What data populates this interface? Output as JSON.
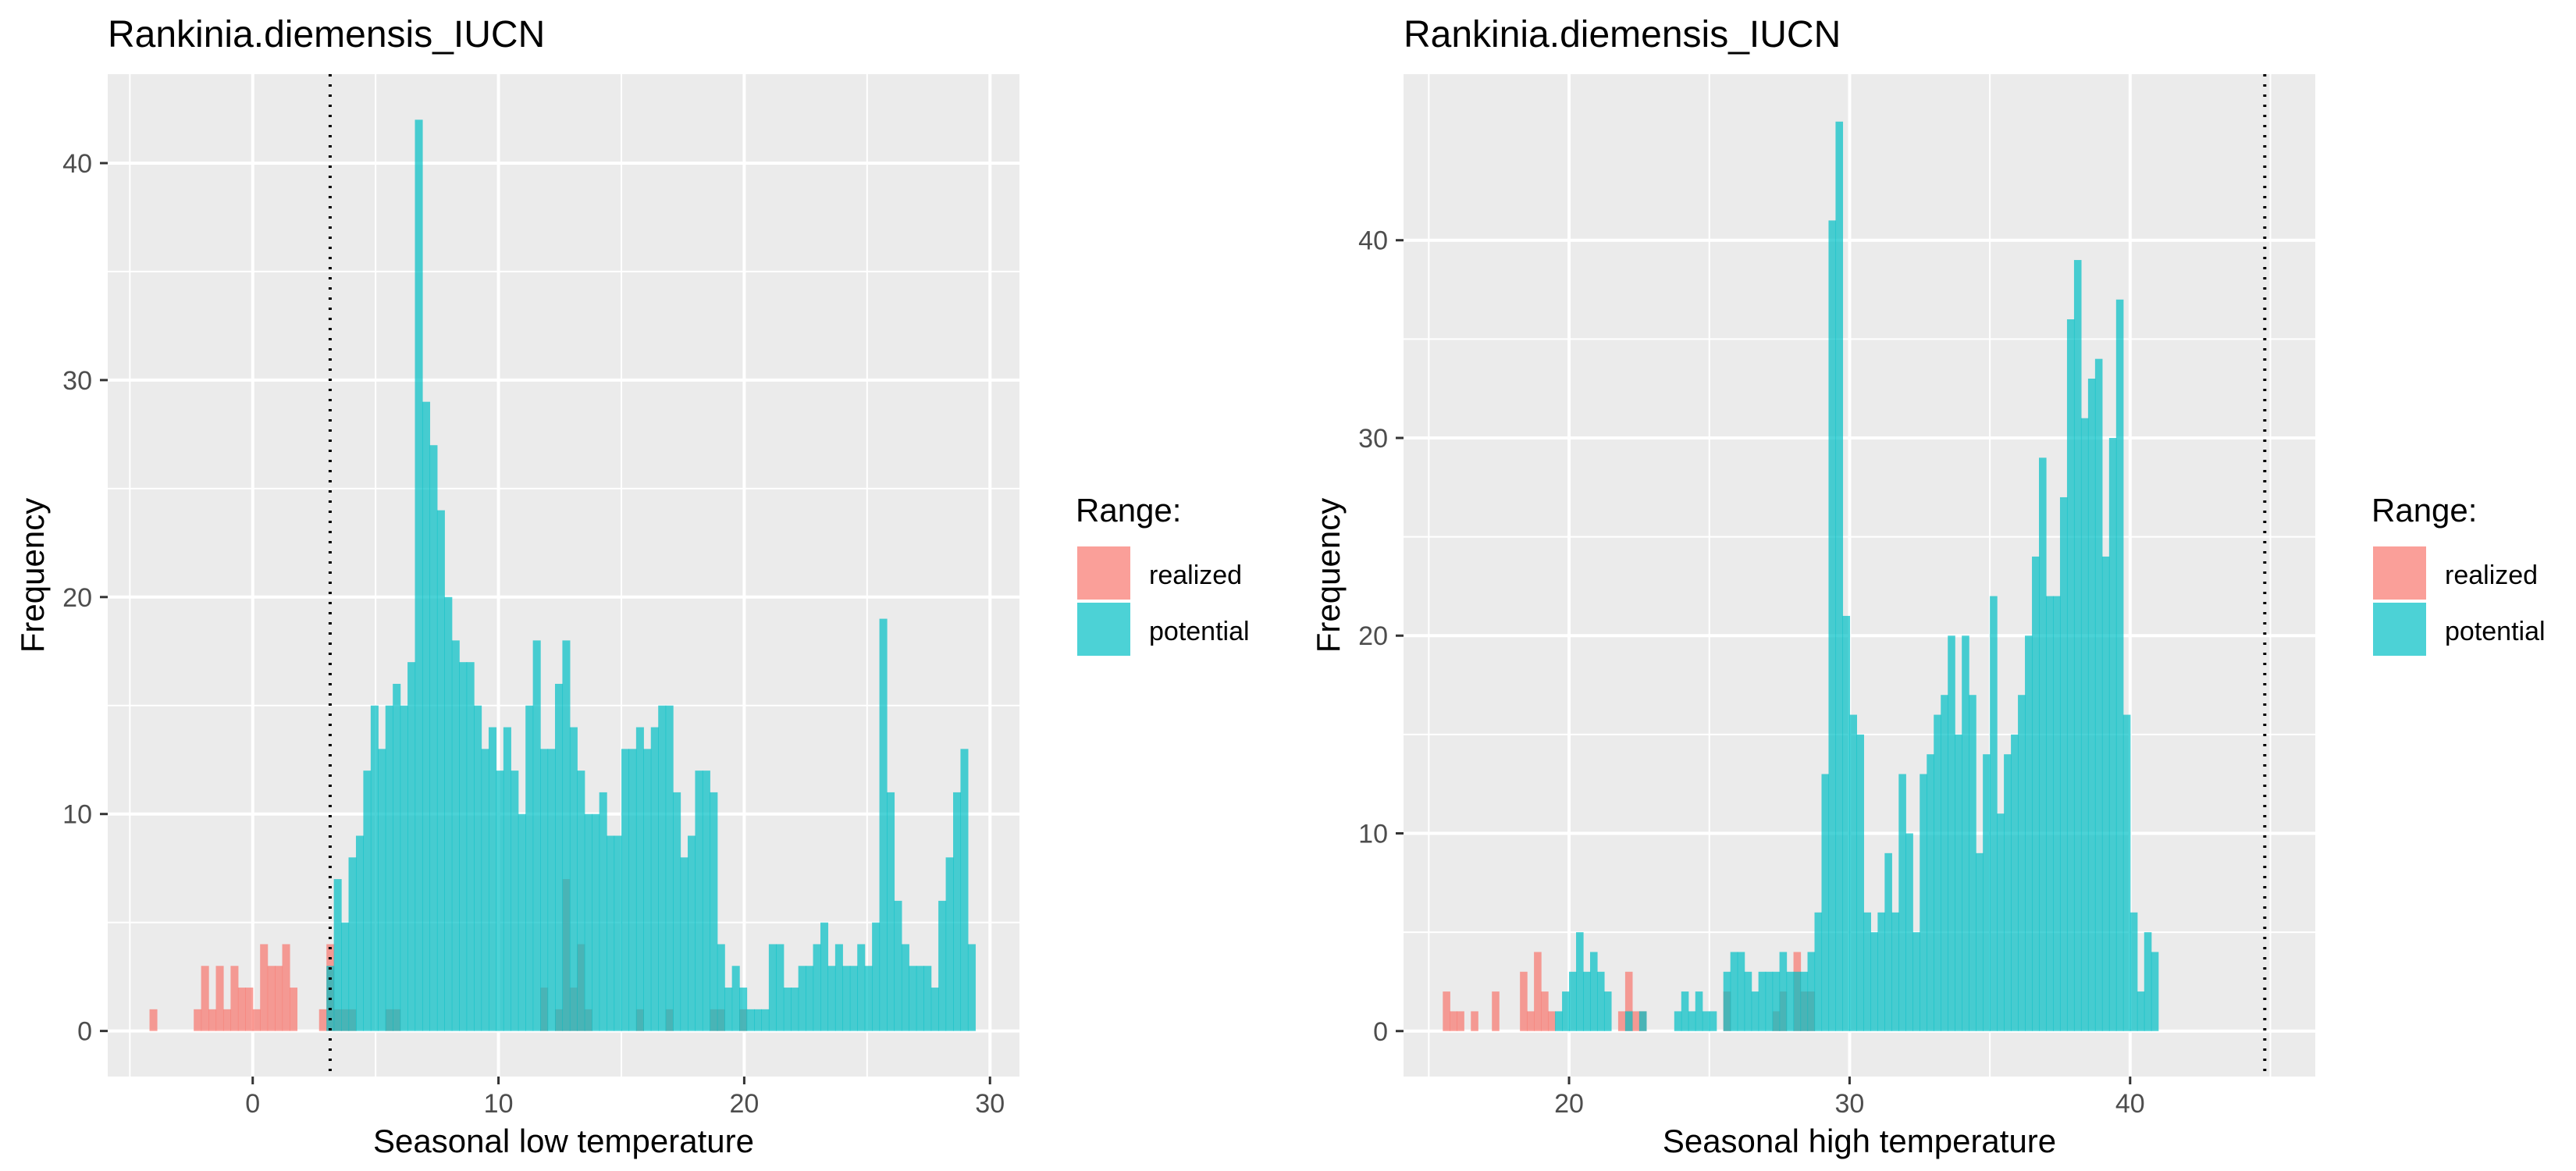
{
  "chart_data": [
    {
      "type": "histogram",
      "title": "Rankinia.diemensis_IUCN",
      "xlabel": "Seasonal low temperature",
      "ylabel": "Frequency",
      "xlim": [
        -5.9,
        31.2
      ],
      "ylim": [
        -2.1,
        44.1
      ],
      "x_ticks": [
        0,
        10,
        20,
        30
      ],
      "y_ticks": [
        0,
        10,
        20,
        30,
        40
      ],
      "grid": true,
      "bin_width": 0.3,
      "reference_line": {
        "x": 3.15,
        "style": "dotted"
      },
      "legend": {
        "title": "Range:",
        "position": "right",
        "entries": [
          "realized",
          "potential"
        ]
      },
      "series": [
        {
          "name": "realized",
          "color": "#F8766D",
          "bins": [
            [
              -4.2,
              1
            ],
            [
              -2.4,
              1
            ],
            [
              -2.1,
              3
            ],
            [
              -1.8,
              1
            ],
            [
              -1.5,
              3
            ],
            [
              -1.2,
              1
            ],
            [
              -0.9,
              3
            ],
            [
              -0.6,
              2
            ],
            [
              -0.3,
              2
            ],
            [
              0.0,
              1
            ],
            [
              0.3,
              4
            ],
            [
              0.6,
              3
            ],
            [
              0.9,
              3
            ],
            [
              1.2,
              4
            ],
            [
              1.5,
              2
            ],
            [
              2.7,
              1
            ],
            [
              3.0,
              4
            ],
            [
              3.3,
              1
            ],
            [
              3.6,
              1
            ],
            [
              3.9,
              1
            ],
            [
              5.4,
              1
            ],
            [
              5.7,
              1
            ],
            [
              11.7,
              2
            ],
            [
              12.3,
              1
            ],
            [
              12.6,
              7
            ],
            [
              12.9,
              2
            ],
            [
              13.2,
              4
            ],
            [
              13.5,
              1
            ],
            [
              15.6,
              1
            ],
            [
              16.8,
              1
            ],
            [
              18.6,
              1
            ],
            [
              18.9,
              1
            ],
            [
              19.8,
              1
            ]
          ]
        },
        {
          "name": "potential",
          "color": "#00BFC4",
          "bins": [
            [
              3.0,
              3
            ],
            [
              3.3,
              7
            ],
            [
              3.6,
              5
            ],
            [
              3.9,
              8
            ],
            [
              4.2,
              9
            ],
            [
              4.5,
              12
            ],
            [
              4.8,
              15
            ],
            [
              5.1,
              13
            ],
            [
              5.4,
              15
            ],
            [
              5.7,
              16
            ],
            [
              6.0,
              15
            ],
            [
              6.3,
              17
            ],
            [
              6.6,
              42
            ],
            [
              6.9,
              29
            ],
            [
              7.2,
              27
            ],
            [
              7.5,
              24
            ],
            [
              7.8,
              20
            ],
            [
              8.1,
              18
            ],
            [
              8.4,
              17
            ],
            [
              8.7,
              17
            ],
            [
              9.0,
              15
            ],
            [
              9.3,
              13
            ],
            [
              9.6,
              14
            ],
            [
              9.9,
              12
            ],
            [
              10.2,
              14
            ],
            [
              10.5,
              12
            ],
            [
              10.8,
              10
            ],
            [
              11.1,
              15
            ],
            [
              11.4,
              18
            ],
            [
              11.7,
              13
            ],
            [
              12.0,
              13
            ],
            [
              12.3,
              16
            ],
            [
              12.6,
              18
            ],
            [
              12.9,
              14
            ],
            [
              13.2,
              12
            ],
            [
              13.5,
              10
            ],
            [
              13.8,
              10
            ],
            [
              14.1,
              11
            ],
            [
              14.4,
              9
            ],
            [
              14.7,
              9
            ],
            [
              15.0,
              13
            ],
            [
              15.3,
              13
            ],
            [
              15.6,
              14
            ],
            [
              15.9,
              13
            ],
            [
              16.2,
              14
            ],
            [
              16.5,
              15
            ],
            [
              16.8,
              15
            ],
            [
              17.1,
              11
            ],
            [
              17.4,
              8
            ],
            [
              17.7,
              9
            ],
            [
              18.0,
              12
            ],
            [
              18.3,
              12
            ],
            [
              18.6,
              11
            ],
            [
              18.9,
              4
            ],
            [
              19.2,
              2
            ],
            [
              19.5,
              3
            ],
            [
              19.8,
              2
            ],
            [
              20.1,
              1
            ],
            [
              20.4,
              1
            ],
            [
              20.7,
              1
            ],
            [
              21.0,
              4
            ],
            [
              21.3,
              4
            ],
            [
              21.6,
              2
            ],
            [
              21.9,
              2
            ],
            [
              22.2,
              3
            ],
            [
              22.5,
              3
            ],
            [
              22.8,
              4
            ],
            [
              23.1,
              5
            ],
            [
              23.4,
              3
            ],
            [
              23.7,
              4
            ],
            [
              24.0,
              3
            ],
            [
              24.3,
              3
            ],
            [
              24.6,
              4
            ],
            [
              24.9,
              3
            ],
            [
              25.2,
              5
            ],
            [
              25.5,
              19
            ],
            [
              25.8,
              11
            ],
            [
              26.1,
              6
            ],
            [
              26.4,
              4
            ],
            [
              26.7,
              3
            ],
            [
              27.0,
              3
            ],
            [
              27.3,
              3
            ],
            [
              27.6,
              2
            ],
            [
              27.9,
              6
            ],
            [
              28.2,
              8
            ],
            [
              28.5,
              11
            ],
            [
              28.8,
              13
            ],
            [
              29.1,
              4
            ]
          ]
        }
      ]
    },
    {
      "type": "histogram",
      "title": "Rankinia.diemensis_IUCN",
      "xlabel": "Seasonal high temperature",
      "ylabel": "Frequency",
      "xlim": [
        14.1,
        46.6
      ],
      "ylim": [
        -2.3,
        48.4
      ],
      "x_ticks": [
        20,
        30,
        40
      ],
      "y_ticks": [
        0,
        10,
        20,
        30,
        40
      ],
      "grid": true,
      "bin_width": 0.25,
      "reference_line": {
        "x": 44.8,
        "style": "dotted"
      },
      "legend": {
        "title": "Range:",
        "position": "right",
        "entries": [
          "realized",
          "potential"
        ]
      },
      "series": [
        {
          "name": "realized",
          "color": "#F8766D",
          "bins": [
            [
              15.5,
              2
            ],
            [
              15.75,
              1
            ],
            [
              16.0,
              1
            ],
            [
              16.5,
              1
            ],
            [
              17.25,
              2
            ],
            [
              18.25,
              3
            ],
            [
              18.5,
              1
            ],
            [
              18.75,
              4
            ],
            [
              19.0,
              2
            ],
            [
              19.25,
              1
            ],
            [
              21.75,
              1
            ],
            [
              22.0,
              3
            ],
            [
              22.25,
              1
            ],
            [
              22.5,
              1
            ],
            [
              25.5,
              2
            ],
            [
              27.25,
              1
            ],
            [
              27.5,
              2
            ],
            [
              28.0,
              4
            ],
            [
              28.25,
              2
            ],
            [
              28.5,
              2
            ]
          ]
        },
        {
          "name": "potential",
          "color": "#00BFC4",
          "bins": [
            [
              19.5,
              1
            ],
            [
              19.75,
              2
            ],
            [
              20.0,
              3
            ],
            [
              20.25,
              5
            ],
            [
              20.5,
              3
            ],
            [
              20.75,
              4
            ],
            [
              21.0,
              3
            ],
            [
              21.25,
              2
            ],
            [
              22.0,
              1
            ],
            [
              22.5,
              1
            ],
            [
              23.75,
              1
            ],
            [
              24.0,
              2
            ],
            [
              24.25,
              1
            ],
            [
              24.5,
              2
            ],
            [
              24.75,
              1
            ],
            [
              25.0,
              1
            ],
            [
              25.5,
              3
            ],
            [
              25.75,
              4
            ],
            [
              26.0,
              4
            ],
            [
              26.25,
              3
            ],
            [
              26.5,
              2
            ],
            [
              26.75,
              3
            ],
            [
              27.0,
              3
            ],
            [
              27.25,
              3
            ],
            [
              27.5,
              4
            ],
            [
              27.75,
              3
            ],
            [
              28.0,
              3
            ],
            [
              28.25,
              3
            ],
            [
              28.5,
              4
            ],
            [
              28.75,
              6
            ],
            [
              29.0,
              13
            ],
            [
              29.25,
              41
            ],
            [
              29.5,
              46
            ],
            [
              29.75,
              21
            ],
            [
              30.0,
              16
            ],
            [
              30.25,
              15
            ],
            [
              30.5,
              6
            ],
            [
              30.75,
              5
            ],
            [
              31.0,
              6
            ],
            [
              31.25,
              9
            ],
            [
              31.5,
              6
            ],
            [
              31.75,
              13
            ],
            [
              32.0,
              10
            ],
            [
              32.25,
              5
            ],
            [
              32.5,
              13
            ],
            [
              32.75,
              14
            ],
            [
              33.0,
              16
            ],
            [
              33.25,
              17
            ],
            [
              33.5,
              20
            ],
            [
              33.75,
              15
            ],
            [
              34.0,
              20
            ],
            [
              34.25,
              17
            ],
            [
              34.5,
              9
            ],
            [
              34.75,
              14
            ],
            [
              35.0,
              22
            ],
            [
              35.25,
              11
            ],
            [
              35.5,
              14
            ],
            [
              35.75,
              15
            ],
            [
              36.0,
              17
            ],
            [
              36.25,
              20
            ],
            [
              36.5,
              24
            ],
            [
              36.75,
              29
            ],
            [
              37.0,
              22
            ],
            [
              37.25,
              22
            ],
            [
              37.5,
              27
            ],
            [
              37.75,
              36
            ],
            [
              38.0,
              39
            ],
            [
              38.25,
              31
            ],
            [
              38.5,
              33
            ],
            [
              38.75,
              34
            ],
            [
              39.0,
              24
            ],
            [
              39.25,
              30
            ],
            [
              39.5,
              37
            ],
            [
              39.75,
              16
            ],
            [
              40.0,
              6
            ],
            [
              40.25,
              2
            ],
            [
              40.5,
              5
            ],
            [
              40.75,
              4
            ]
          ]
        }
      ]
    }
  ]
}
